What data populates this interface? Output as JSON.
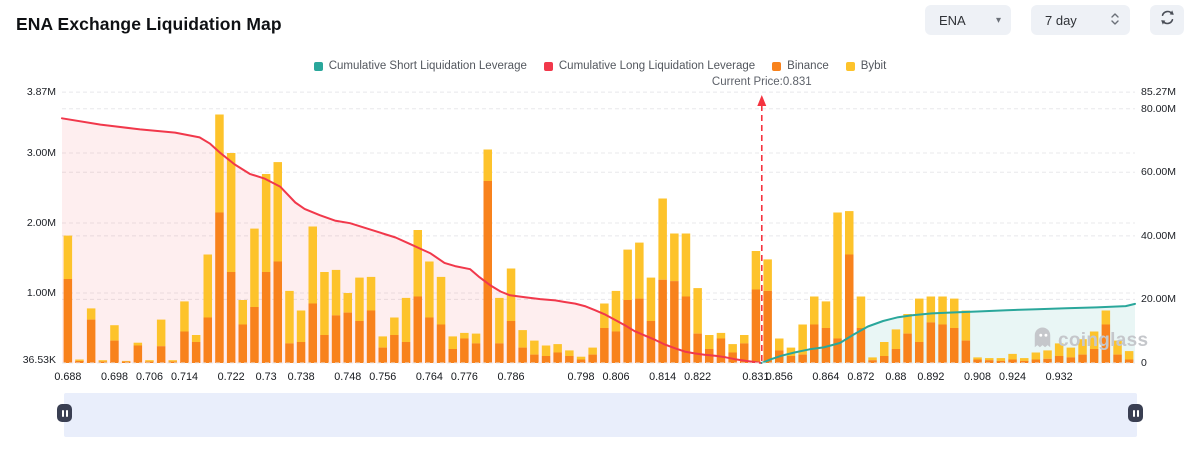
{
  "header": {
    "title": "ENA Exchange Liquidation Map"
  },
  "controls": {
    "symbol_select": {
      "value": "ENA",
      "icon": "chevron-down-icon"
    },
    "period_select": {
      "value": "7 day",
      "icon": "stepper-updown-icon"
    },
    "refresh": {
      "icon": "refresh-icon"
    }
  },
  "legend": [
    {
      "label": "Cumulative Short Liquidation Leverage",
      "color": "#2aa79b"
    },
    {
      "label": "Cumulative Long Liquidation Leverage",
      "color": "#f1384b"
    },
    {
      "label": "Binance",
      "color": "#f8821c"
    },
    {
      "label": "Bybit",
      "color": "#fdc32b"
    }
  ],
  "watermark": {
    "text": "coinglass",
    "icon": "ghost-logo-icon",
    "color": "#c5c7cb"
  },
  "slider": {
    "left_handle_icon": "pause-icon",
    "right_handle_icon": "pause-icon"
  },
  "chart_data": {
    "type": "bar",
    "title": "ENA Exchange Liquidation Map",
    "grid": "dashed-horizontal",
    "left_axis": {
      "unit": "M",
      "ticks": [
        {
          "label": "3.87M",
          "value": 3.87
        },
        {
          "label": "3.00M",
          "value": 3.0
        },
        {
          "label": "2.00M",
          "value": 2.0
        },
        {
          "label": "1.00M",
          "value": 1.0
        },
        {
          "label": "36.53K",
          "value": 0.03653
        }
      ],
      "grid_values": [
        3.87,
        3.0,
        2.0,
        1.0
      ]
    },
    "right_axis": {
      "unit": "M",
      "max": 85.27,
      "ticks": [
        {
          "label": "85.27M",
          "value": 85.27
        },
        {
          "label": "80.00M",
          "value": 80
        },
        {
          "label": "60.00M",
          "value": 60
        },
        {
          "label": "40.00M",
          "value": 40
        },
        {
          "label": "20.00M",
          "value": 20
        },
        {
          "label": "0",
          "value": 0
        }
      ],
      "grid_values": [
        80,
        60,
        40,
        20,
        0
      ]
    },
    "x_ticks": [
      "0.688",
      "0.698",
      "0.706",
      "0.714",
      "0.722",
      "0.73",
      "0.738",
      "0.748",
      "0.756",
      "0.764",
      "0.776",
      "0.786",
      "0.798",
      "0.806",
      "0.814",
      "0.822",
      "0.831",
      "0.856",
      "0.864",
      "0.872",
      "0.88",
      "0.892",
      "0.908",
      "0.924",
      "0.932"
    ],
    "x_tick_bar_indices": [
      0,
      4,
      7,
      10,
      14,
      17,
      20,
      24,
      27,
      31,
      34,
      38,
      44,
      47,
      51,
      54,
      59,
      61,
      65,
      68,
      71,
      74,
      78,
      81,
      85
    ],
    "bars": {
      "stack_order": [
        "Binance",
        "Bybit"
      ],
      "series": [
        {
          "name": "Binance",
          "color": "#f8821c",
          "values": [
            1.2,
            0.03,
            0.62,
            0.02,
            0.32,
            0.02,
            0.25,
            0.02,
            0.24,
            0.02,
            0.45,
            0.3,
            0.65,
            2.15,
            1.3,
            0.55,
            0.8,
            1.3,
            1.45,
            0.28,
            0.3,
            0.85,
            0.4,
            0.68,
            0.72,
            0.6,
            0.75,
            0.22,
            0.4,
            0.3,
            0.95,
            0.65,
            0.55,
            0.2,
            0.35,
            0.28,
            2.6,
            0.28,
            0.6,
            0.22,
            0.12,
            0.1,
            0.15,
            0.1,
            0.05,
            0.12,
            0.5,
            0.45,
            0.9,
            0.92,
            0.6,
            1.19,
            1.17,
            0.95,
            0.42,
            0.2,
            0.35,
            0.15,
            0.28,
            1.05,
            1.03,
            0.18,
            0.1,
            0.12,
            0.55,
            0.5,
            0.35,
            1.55,
            0.5,
            0.04,
            0.1,
            0.2,
            0.42,
            0.3,
            0.58,
            0.55,
            0.5,
            0.32,
            0.05,
            0.04,
            0.03,
            0.05,
            0.03,
            0.05,
            0.06,
            0.1,
            0.08,
            0.12,
            0.2,
            0.55,
            0.12,
            0.05
          ]
        },
        {
          "name": "Bybit",
          "color": "#fdc32b",
          "values": [
            0.62,
            0.02,
            0.16,
            0.02,
            0.22,
            0.01,
            0.04,
            0.02,
            0.38,
            0.02,
            0.43,
            0.1,
            0.9,
            1.4,
            1.7,
            0.35,
            1.12,
            1.4,
            1.42,
            0.75,
            0.45,
            1.1,
            0.9,
            0.65,
            0.28,
            0.62,
            0.48,
            0.16,
            0.25,
            0.63,
            0.95,
            0.8,
            0.68,
            0.18,
            0.08,
            0.14,
            0.45,
            0.65,
            0.75,
            0.25,
            0.2,
            0.15,
            0.12,
            0.08,
            0.04,
            0.1,
            0.35,
            0.58,
            0.72,
            0.8,
            0.62,
            1.16,
            0.68,
            0.9,
            0.65,
            0.2,
            0.08,
            0.12,
            0.12,
            0.55,
            0.45,
            0.17,
            0.12,
            0.43,
            0.4,
            0.38,
            1.8,
            0.62,
            0.45,
            0.04,
            0.2,
            0.28,
            0.28,
            0.62,
            0.37,
            0.4,
            0.42,
            0.43,
            0.03,
            0.03,
            0.04,
            0.08,
            0.04,
            0.1,
            0.12,
            0.18,
            0.14,
            0.22,
            0.25,
            0.2,
            0.2,
            0.12
          ]
        }
      ]
    },
    "lines": [
      {
        "name": "Cumulative Long Liquidation Leverage",
        "color": "#f1384b",
        "fill": "rgba(241,56,75,0.085)",
        "axis": "right",
        "points": [
          [
            -0.5,
            77
          ],
          [
            2.8,
            75
          ],
          [
            6.2,
            73.5
          ],
          [
            9.2,
            72.5
          ],
          [
            11.3,
            71
          ],
          [
            12.2,
            69
          ],
          [
            13.1,
            66
          ],
          [
            14.3,
            62.5
          ],
          [
            15.6,
            59.5
          ],
          [
            16.9,
            58
          ],
          [
            18.2,
            55.5
          ],
          [
            19.5,
            50.5
          ],
          [
            20.3,
            48.5
          ],
          [
            21.6,
            46.5
          ],
          [
            22.9,
            44.8
          ],
          [
            24.2,
            44
          ],
          [
            25.5,
            42.5
          ],
          [
            26.8,
            41
          ],
          [
            28.1,
            39.5
          ],
          [
            29.3,
            37.5
          ],
          [
            30.2,
            36
          ],
          [
            31.1,
            34.5
          ],
          [
            32.3,
            31.5
          ],
          [
            33.2,
            30.5
          ],
          [
            34.5,
            29.5
          ],
          [
            35.3,
            27
          ],
          [
            36.2,
            24.5
          ],
          [
            37.1,
            22.5
          ],
          [
            37.9,
            21.3
          ],
          [
            39.2,
            20.7
          ],
          [
            40.5,
            20.1
          ],
          [
            41.8,
            19.7
          ],
          [
            42.6,
            19.2
          ],
          [
            43.5,
            18.7
          ],
          [
            44.4,
            17.8
          ],
          [
            45.2,
            16.6
          ],
          [
            46.1,
            15.2
          ],
          [
            46.9,
            13.6
          ],
          [
            47.8,
            11.8
          ],
          [
            48.6,
            10
          ],
          [
            49.5,
            8.6
          ],
          [
            50.4,
            7.2
          ],
          [
            51.2,
            5.8
          ],
          [
            52.1,
            4.6
          ],
          [
            52.9,
            3.6
          ],
          [
            53.8,
            3.0
          ],
          [
            54.6,
            2.6
          ],
          [
            55.5,
            2.3
          ],
          [
            56.4,
            1.8
          ],
          [
            57.2,
            1.2
          ],
          [
            58.3,
            0.6
          ],
          [
            59.5,
            0
          ]
        ]
      },
      {
        "name": "Cumulative Short Liquidation Leverage",
        "color": "#2aa79b",
        "fill": "rgba(42,167,155,0.10)",
        "axis": "right",
        "points": [
          [
            59.5,
            0
          ],
          [
            60.3,
            1.2
          ],
          [
            61.2,
            2.3
          ],
          [
            62.3,
            3.3
          ],
          [
            63.6,
            4.3
          ],
          [
            64.8,
            4.9
          ],
          [
            66.2,
            6.3
          ],
          [
            67.4,
            9.0
          ],
          [
            68.6,
            11.5
          ],
          [
            69.9,
            13.2
          ],
          [
            71.2,
            14.4
          ],
          [
            72.4,
            15.0
          ],
          [
            74.1,
            15.6
          ],
          [
            75.8,
            15.9
          ],
          [
            78,
            16.2
          ],
          [
            80.5,
            16.6
          ],
          [
            83.1,
            16.9
          ],
          [
            85.6,
            17.2
          ],
          [
            88.2,
            17.5
          ],
          [
            90.7,
            17.9
          ],
          [
            91.5,
            18.6
          ]
        ]
      }
    ],
    "current_price": {
      "label": "Current Price:0.831",
      "value": "0.831",
      "line_index": 59.5,
      "color": "#f5333f"
    }
  }
}
